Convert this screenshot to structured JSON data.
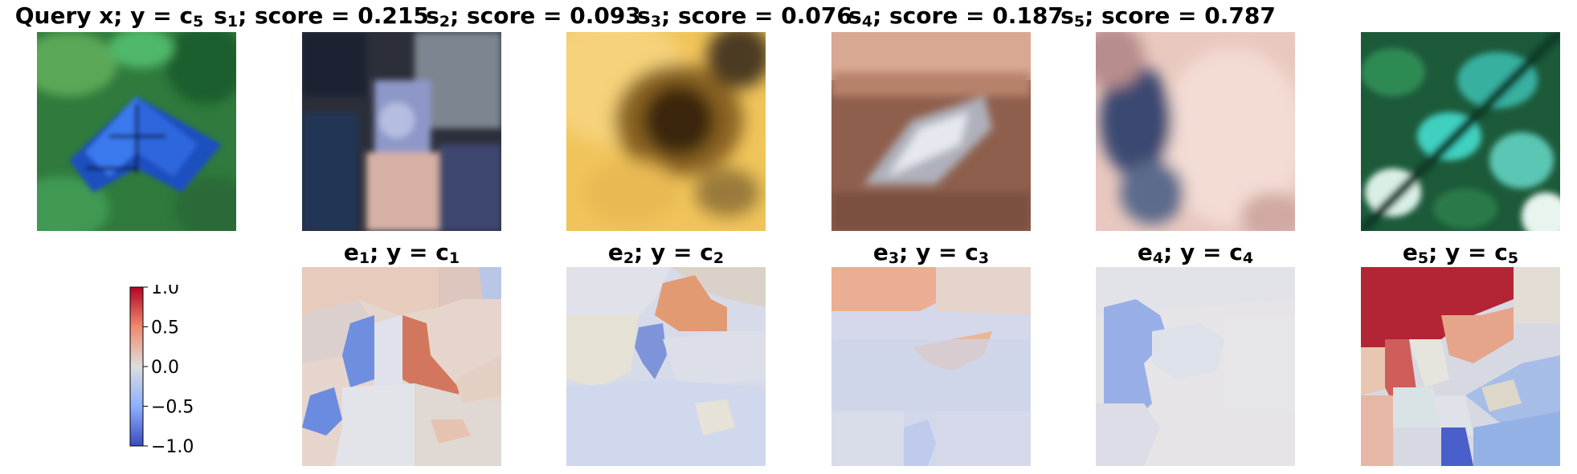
{
  "chart_data": {
    "type": "image-grid",
    "rows": [
      {
        "row": "samples",
        "panels": [
          {
            "id": "query",
            "title_parts": [
              {
                "t": "Query x; y = c"
              },
              {
                "t": "5",
                "sub": true
              }
            ],
            "image": "blue butterfly on green leaves",
            "palette": [
              "#2e7d3e",
              "#1f5fd6"
            ]
          },
          {
            "id": "s1",
            "title_parts": [
              {
                "t": "s"
              },
              {
                "t": "1",
                "sub": true
              },
              {
                "t": "; score = 0.215"
              }
            ],
            "score": 0.215,
            "image": "person / child indoors",
            "palette": [
              "#3a4a6e",
              "#d9b6a8"
            ]
          },
          {
            "id": "s2",
            "title_parts": [
              {
                "t": "s"
              },
              {
                "t": "2",
                "sub": true
              },
              {
                "t": "; score = 0.093"
              }
            ],
            "score": 0.093,
            "image": "dark animal on yellow background",
            "palette": [
              "#e8b84a",
              "#3d2c12"
            ]
          },
          {
            "id": "s3",
            "title_parts": [
              {
                "t": "s"
              },
              {
                "t": "3",
                "sub": true
              },
              {
                "t": "; score = 0.076"
              }
            ],
            "score": 0.076,
            "image": "glass object on brown surface",
            "palette": [
              "#9b6a57",
              "#d7d7df"
            ]
          },
          {
            "id": "s4",
            "title_parts": [
              {
                "t": "s"
              },
              {
                "t": "4",
                "sub": true
              },
              {
                "t": "; score = 0.187"
              }
            ],
            "score": 0.187,
            "image": "blurry pink close-up",
            "palette": [
              "#e9c9c0",
              "#3b4a6e"
            ]
          },
          {
            "id": "s5",
            "title_parts": [
              {
                "t": "s"
              },
              {
                "t": "5",
                "sub": true
              },
              {
                "t": "; score = 0.787"
              }
            ],
            "score": 0.787,
            "image": "green and turquoise leaves",
            "palette": [
              "#1f6b45",
              "#38c6b0"
            ]
          }
        ]
      },
      {
        "row": "explanations",
        "panels": [
          {
            "id": "e1",
            "title_parts": [
              {
                "t": "e"
              },
              {
                "t": "1",
                "sub": true
              },
              {
                "t": "; y = c"
              },
              {
                "t": "1",
                "sub": true
              }
            ]
          },
          {
            "id": "e2",
            "title_parts": [
              {
                "t": "e"
              },
              {
                "t": "2",
                "sub": true
              },
              {
                "t": "; y = c"
              },
              {
                "t": "2",
                "sub": true
              }
            ]
          },
          {
            "id": "e3",
            "title_parts": [
              {
                "t": "e"
              },
              {
                "t": "3",
                "sub": true
              },
              {
                "t": "; y = c"
              },
              {
                "t": "3",
                "sub": true
              }
            ]
          },
          {
            "id": "e4",
            "title_parts": [
              {
                "t": "e"
              },
              {
                "t": "4",
                "sub": true
              },
              {
                "t": "; y = c"
              },
              {
                "t": "4",
                "sub": true
              }
            ]
          },
          {
            "id": "e5",
            "title_parts": [
              {
                "t": "e"
              },
              {
                "t": "5",
                "sub": true
              },
              {
                "t": "; y = c"
              },
              {
                "t": "5",
                "sub": true
              }
            ]
          }
        ]
      }
    ],
    "colorbar": {
      "colormap": "coolwarm",
      "range": [
        -1.0,
        1.0
      ],
      "ticks": [
        "1.0",
        "0.5",
        "0.0",
        "−0.5",
        "−1.0"
      ],
      "colors": {
        "low": "#3b4cc0",
        "mid": "#dddddd",
        "high": "#b40426"
      }
    }
  }
}
